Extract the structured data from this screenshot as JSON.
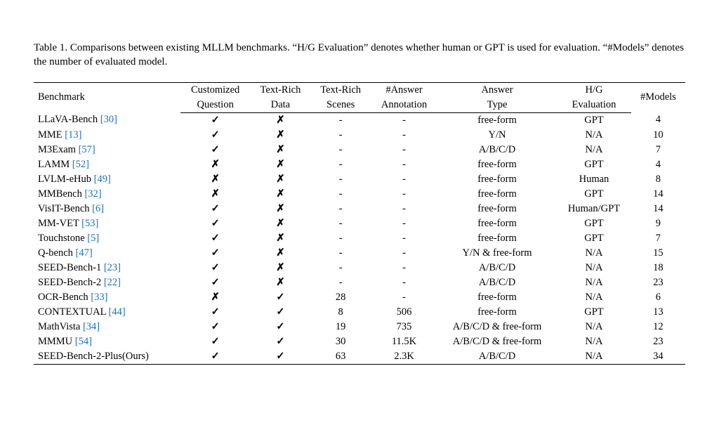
{
  "caption_prefix": "Table 1.",
  "caption_text": " Comparisons between existing MLLM benchmarks. “H/G Evaluation” denotes whether human or GPT is used for evaluation. “#Models” denotes the number of evaluated model.",
  "cite_color": "#1a6fc9",
  "text_color": "#000000",
  "background_color": "#ffffff",
  "font_family": "Times New Roman",
  "caption_fontsize": 15,
  "table_fontsize": 14.5,
  "check_glyph": "✓",
  "cross_glyph": "✗",
  "columns": [
    {
      "line1": "Benchmark",
      "line2": "",
      "align": "left"
    },
    {
      "line1": "Customized",
      "line2": "Question",
      "align": "center"
    },
    {
      "line1": "Text-Rich",
      "line2": "Data",
      "align": "center"
    },
    {
      "line1": "Text-Rich",
      "line2": "Scenes",
      "align": "center"
    },
    {
      "line1": "#Answer",
      "line2": "Annotation",
      "align": "center"
    },
    {
      "line1": "Answer",
      "line2": "Type",
      "align": "center"
    },
    {
      "line1": "H/G",
      "line2": "Evaluation",
      "align": "center"
    },
    {
      "line1": "#Models",
      "line2": "",
      "align": "center"
    }
  ],
  "rows": [
    {
      "name": "LLaVA-Bench",
      "cite": "[30]",
      "customized": "check",
      "textrich_data": "cross",
      "scenes": "-",
      "annotation": "-",
      "answer_type": "free-form",
      "hg": "GPT",
      "models": "4"
    },
    {
      "name": "MME",
      "cite": "[13]",
      "customized": "check",
      "textrich_data": "cross",
      "scenes": "-",
      "annotation": "-",
      "answer_type": "Y/N",
      "hg": "N/A",
      "models": "10"
    },
    {
      "name": "M3Exam",
      "cite": "[57]",
      "customized": "check",
      "textrich_data": "cross",
      "scenes": "-",
      "annotation": "-",
      "answer_type": "A/B/C/D",
      "hg": "N/A",
      "models": "7"
    },
    {
      "name": "LAMM",
      "cite": "[52]",
      "customized": "cross",
      "textrich_data": "cross",
      "scenes": "-",
      "annotation": "-",
      "answer_type": "free-form",
      "hg": "GPT",
      "models": "4"
    },
    {
      "name": "LVLM-eHub",
      "cite": "[49]",
      "customized": "cross",
      "textrich_data": "cross",
      "scenes": "-",
      "annotation": "-",
      "answer_type": "free-form",
      "hg": "Human",
      "models": "8"
    },
    {
      "name": "MMBench",
      "cite": "[32]",
      "customized": "cross",
      "textrich_data": "cross",
      "scenes": "-",
      "annotation": "-",
      "answer_type": "free-form",
      "hg": "GPT",
      "models": "14"
    },
    {
      "name": "VisIT-Bench",
      "cite": "[6]",
      "customized": "check",
      "textrich_data": "cross",
      "scenes": "-",
      "annotation": "-",
      "answer_type": "free-form",
      "hg": "Human/GPT",
      "models": "14"
    },
    {
      "name": "MM-VET",
      "cite": "[53]",
      "customized": "check",
      "textrich_data": "cross",
      "scenes": "-",
      "annotation": "-",
      "answer_type": "free-form",
      "hg": "GPT",
      "models": "9"
    },
    {
      "name": "Touchstone",
      "cite": "[5]",
      "customized": "check",
      "textrich_data": "cross",
      "scenes": "-",
      "annotation": "-",
      "answer_type": "free-form",
      "hg": "GPT",
      "models": "7"
    },
    {
      "name": "Q-bench",
      "cite": "[47]",
      "customized": "check",
      "textrich_data": "cross",
      "scenes": "-",
      "annotation": "-",
      "answer_type": "Y/N & free-form",
      "hg": "N/A",
      "models": "15"
    },
    {
      "name": "SEED-Bench-1",
      "cite": "[23]",
      "customized": "check",
      "textrich_data": "cross",
      "scenes": "-",
      "annotation": "-",
      "answer_type": "A/B/C/D",
      "hg": "N/A",
      "models": "18"
    },
    {
      "name": "SEED-Bench-2",
      "cite": "[22]",
      "customized": "check",
      "textrich_data": "cross",
      "scenes": "-",
      "annotation": "-",
      "answer_type": "A/B/C/D",
      "hg": "N/A",
      "models": "23"
    },
    {
      "name": "OCR-Bench",
      "cite": "[33]",
      "customized": "cross",
      "textrich_data": "check",
      "scenes": "28",
      "annotation": "-",
      "answer_type": "free-form",
      "hg": "N/A",
      "models": "6"
    },
    {
      "name": "CONTEXTUAL",
      "cite": "[44]",
      "customized": "check",
      "textrich_data": "check",
      "scenes": "8",
      "annotation": "506",
      "answer_type": "free-form",
      "hg": "GPT",
      "models": "13"
    },
    {
      "name": "MathVista",
      "cite": "[34]",
      "customized": "check",
      "textrich_data": "check",
      "scenes": "19",
      "annotation": "735",
      "answer_type": "A/B/C/D & free-form",
      "hg": "N/A",
      "models": "12"
    },
    {
      "name": "MMMU",
      "cite": "[54]",
      "customized": "check",
      "textrich_data": "check",
      "scenes": "30",
      "annotation": "11.5K",
      "answer_type": "A/B/C/D & free-form",
      "hg": "N/A",
      "models": "23"
    },
    {
      "name": "SEED-Bench-2-Plus(Ours)",
      "cite": "",
      "customized": "check",
      "textrich_data": "check",
      "scenes": "63",
      "annotation": "2.3K",
      "answer_type": "A/B/C/D",
      "hg": "N/A",
      "models": "34"
    }
  ]
}
